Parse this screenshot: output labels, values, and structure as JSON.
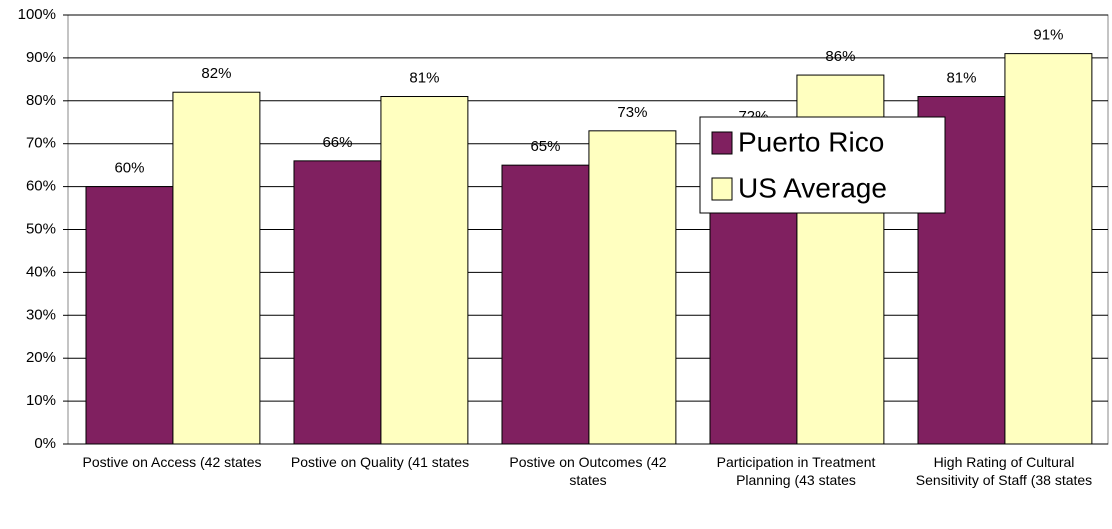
{
  "chart_data": {
    "type": "bar",
    "categories": [
      "Postive on Access (42 states",
      "Postive on Quality (41 states",
      "Postive on Outcomes (42 states",
      "Participation in Treatment Planning (43 states",
      "High Rating of Cultural Sensitivity of Staff (38 states"
    ],
    "series": [
      {
        "name": "Puerto Rico",
        "color": "#802060",
        "values": [
          60,
          66,
          65,
          72,
          81
        ],
        "value_labels": [
          "60%",
          "66%",
          "65%",
          "72%",
          "81%"
        ]
      },
      {
        "name": "US Average",
        "color": "#ffffc0",
        "values": [
          82,
          81,
          73,
          86,
          91
        ],
        "value_labels": [
          "82%",
          "81%",
          "73%",
          "86%",
          "91%"
        ]
      }
    ],
    "ylim": [
      0,
      100
    ],
    "yticks": [
      {
        "value": 0,
        "label": "0%"
      },
      {
        "value": 10,
        "label": "10%"
      },
      {
        "value": 20,
        "label": "20%"
      },
      {
        "value": 30,
        "label": "30%"
      },
      {
        "value": 40,
        "label": "40%"
      },
      {
        "value": 50,
        "label": "50%"
      },
      {
        "value": 60,
        "label": "60%"
      },
      {
        "value": 70,
        "label": "70%"
      },
      {
        "value": 80,
        "label": "80%"
      },
      {
        "value": 90,
        "label": "90%"
      },
      {
        "value": 100,
        "label": "100%"
      }
    ],
    "grid": true,
    "legend": "right"
  }
}
